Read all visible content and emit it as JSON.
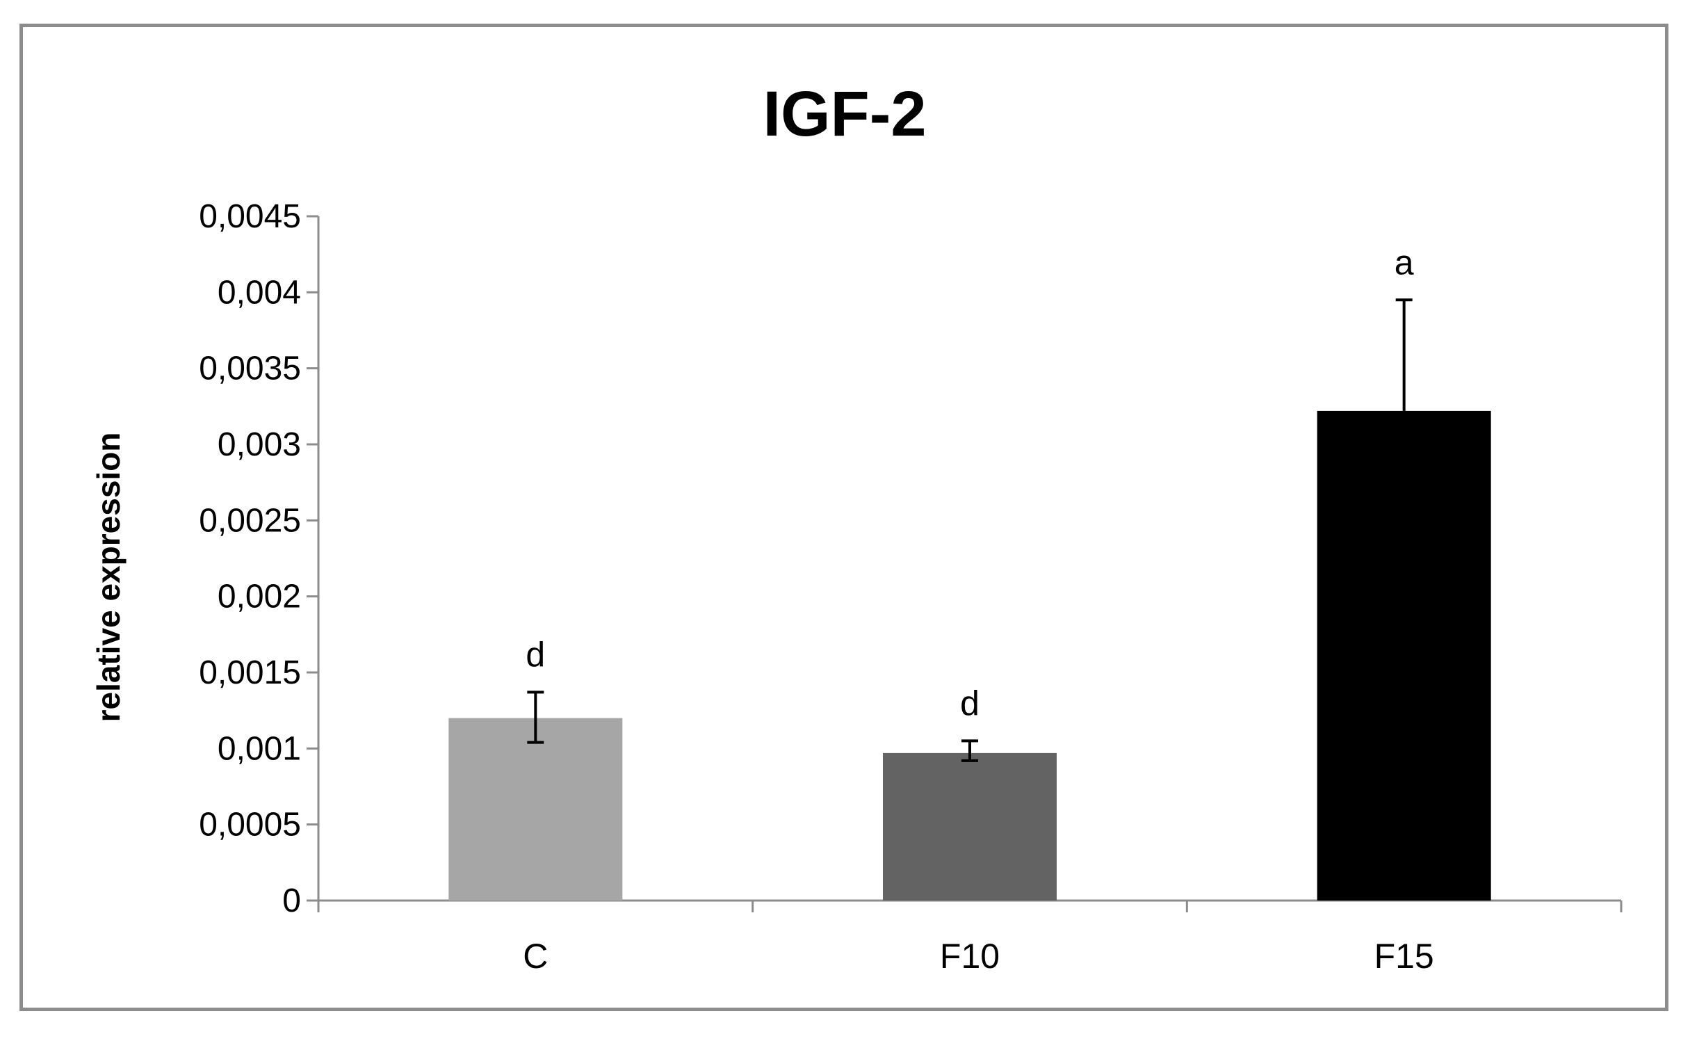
{
  "chart_data": {
    "type": "bar",
    "title": "IGF-2",
    "xlabel": "",
    "ylabel": "relative expression",
    "categories": [
      "C",
      "F10",
      "F15"
    ],
    "values": [
      0.0012,
      0.00097,
      0.00322
    ],
    "error_upper": [
      0.00137,
      0.00105,
      0.00395
    ],
    "error_lower": [
      0.00104,
      0.00092,
      0.00322
    ],
    "significance_labels": [
      "d",
      "d",
      "a"
    ],
    "bar_colors": [
      "#a6a6a6",
      "#636363",
      "#000000"
    ],
    "ylim": [
      0,
      0.0045
    ],
    "yticks": [
      0,
      0.0005,
      0.001,
      0.0015,
      0.002,
      0.0025,
      0.003,
      0.0035,
      0.004,
      0.0045
    ],
    "ytick_labels": [
      "0",
      "0,0005",
      "0,001",
      "0,0015",
      "0,002",
      "0,0025",
      "0,003",
      "0,0035",
      "0,004",
      "0,0045"
    ],
    "grid": false,
    "legend": "none"
  }
}
